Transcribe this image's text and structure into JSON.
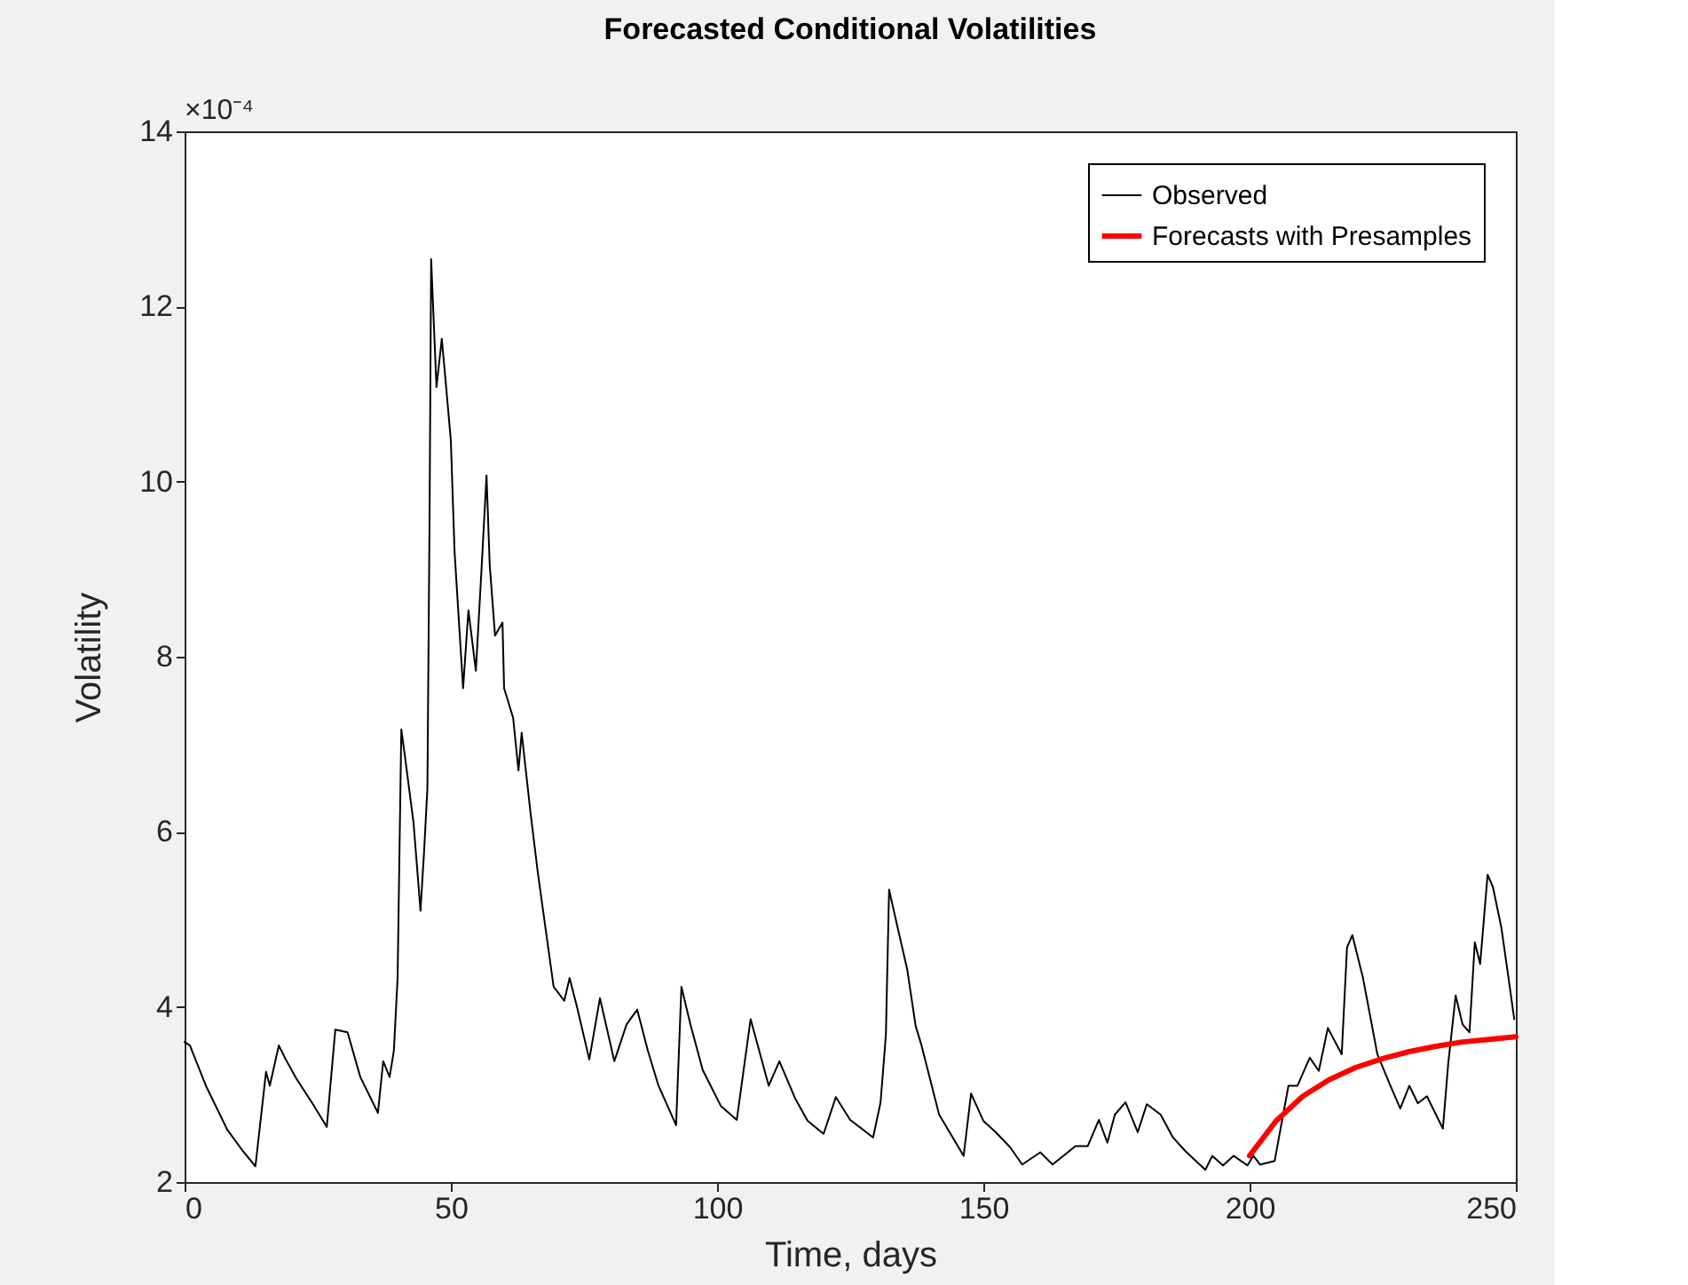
{
  "chart_data": {
    "type": "line",
    "title": "Forecasted Conditional Volatilities",
    "xlabel": "Time, days",
    "ylabel": "Volatility",
    "annotations": [
      "×10⁻⁴"
    ],
    "xlim": [
      0,
      250
    ],
    "xticks": [
      0,
      50,
      100,
      150,
      200,
      250
    ],
    "ylim": [
      2,
      14
    ],
    "yticks": [
      2,
      4,
      6,
      8,
      10,
      12,
      14
    ],
    "grid": false,
    "legend": "top right",
    "series": [
      {
        "name": "Observed",
        "color": "#000000",
        "x": [
          0,
          1,
          4,
          8,
          11,
          13.3,
          15.3,
          16,
          17.7,
          19,
          21,
          24,
          26.7,
          28.3,
          30.6,
          33,
          36.3,
          37.3,
          38.5,
          39.3,
          40,
          40.7,
          41.3,
          43,
          44.3,
          45,
          45.6,
          46,
          46.3,
          47.3,
          48.3,
          49,
          50,
          50.7,
          52.3,
          53.3,
          54.7,
          55.7,
          56.7,
          57.3,
          58.3,
          59.7,
          60,
          61.7,
          62.7,
          63.3,
          65,
          66.3,
          68,
          69.3,
          71.3,
          72.3,
          73.7,
          76,
          78,
          80.7,
          83,
          85,
          87,
          89,
          92.3,
          93.3,
          95,
          97.3,
          100.7,
          103.7,
          106.3,
          109.7,
          111.7,
          114.7,
          117,
          120,
          122.3,
          125,
          129.3,
          130.7,
          131.7,
          132.3,
          134,
          135.7,
          137.3,
          138.3,
          141.7,
          146.3,
          147.7,
          150,
          152.3,
          155,
          157.3,
          160.7,
          163,
          167.3,
          169.6,
          171.7,
          173.3,
          174.7,
          176.7,
          179,
          180.7,
          183.3,
          185.6,
          188,
          191.7,
          193,
          195,
          197,
          199.6,
          200.7,
          202,
          204.7,
          207.3,
          209,
          211.3,
          213,
          214.7,
          217.3,
          218.3,
          219.3,
          221.3,
          224,
          226.3,
          228.3,
          230,
          231.6,
          233.3,
          236.3,
          237.3,
          238.7,
          240,
          241.3,
          242.3,
          243.3,
          244.7,
          245.7,
          247.3,
          248.7,
          249.7
        ],
        "values": [
          3.6,
          3.56,
          3.1,
          2.6,
          2.35,
          2.18,
          3.26,
          3.1,
          3.56,
          3.4,
          3.18,
          2.9,
          2.63,
          3.74,
          3.71,
          3.2,
          2.79,
          3.38,
          3.2,
          3.5,
          4.33,
          7.17,
          6.9,
          6.1,
          5.1,
          5.8,
          6.5,
          9.56,
          12.54,
          11.08,
          11.63,
          11.16,
          10.47,
          9.2,
          7.64,
          8.53,
          7.84,
          8.93,
          10.07,
          9.05,
          8.24,
          8.39,
          7.64,
          7.3,
          6.7,
          7.13,
          6.2,
          5.55,
          4.8,
          4.23,
          4.07,
          4.33,
          4.0,
          3.4,
          4.1,
          3.38,
          3.8,
          3.97,
          3.5,
          3.1,
          2.65,
          4.23,
          3.8,
          3.28,
          2.87,
          2.71,
          3.86,
          3.1,
          3.38,
          2.95,
          2.7,
          2.55,
          2.97,
          2.71,
          2.51,
          2.91,
          3.68,
          5.34,
          4.88,
          4.43,
          3.78,
          3.58,
          2.77,
          2.3,
          3.01,
          2.7,
          2.57,
          2.4,
          2.2,
          2.34,
          2.2,
          2.41,
          2.41,
          2.71,
          2.45,
          2.77,
          2.91,
          2.57,
          2.89,
          2.77,
          2.51,
          2.35,
          2.14,
          2.3,
          2.19,
          2.3,
          2.19,
          2.3,
          2.2,
          2.24,
          3.1,
          3.1,
          3.42,
          3.27,
          3.76,
          3.46,
          4.68,
          4.82,
          4.33,
          3.46,
          3.12,
          2.84,
          3.1,
          2.9,
          2.98,
          2.61,
          3.35,
          4.13,
          3.8,
          3.71,
          4.74,
          4.49,
          5.51,
          5.37,
          4.9,
          4.3,
          3.86
        ]
      },
      {
        "name": "Forecasts with Presamples",
        "color": "#ff0000",
        "x": [
          200,
          205,
          210,
          215,
          220,
          225,
          230,
          235,
          240,
          245,
          250
        ],
        "values": [
          2.3,
          2.7,
          2.98,
          3.17,
          3.31,
          3.41,
          3.49,
          3.55,
          3.6,
          3.63,
          3.66
        ]
      }
    ]
  }
}
